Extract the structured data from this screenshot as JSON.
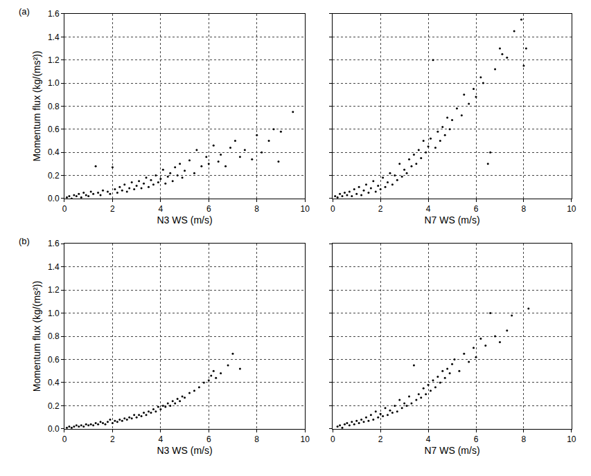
{
  "chart_data": [
    {
      "type": "scatter",
      "annotations": [
        "(a)"
      ],
      "x_label": "N3 WS (m/s)",
      "y_label": "Momentum flux (kg/(ms²))",
      "color": "#000000",
      "marker": "circle",
      "grid": true,
      "xlim": [
        0,
        10
      ],
      "xticks": [
        0,
        2,
        4,
        6,
        8,
        10
      ],
      "ylim": [
        0,
        1.6
      ],
      "yticks": [
        {
          "value": 0,
          "label": "0.0"
        },
        {
          "value": 0.2,
          "label": "0.2"
        },
        {
          "value": 0.4,
          "label": "0.4"
        },
        {
          "value": 0.6,
          "label": "0.6"
        },
        {
          "value": 0.8,
          "label": "0.8"
        },
        {
          "value": 1.0,
          "label": "1.0"
        },
        {
          "value": 1.2,
          "label": "1.2"
        },
        {
          "value": 1.4,
          "label": "1.4"
        },
        {
          "value": 1.6,
          "label": "1.6"
        }
      ],
      "x": [
        0.1,
        0.2,
        0.3,
        0.4,
        0.5,
        0.6,
        0.7,
        0.8,
        0.9,
        1.0,
        1.1,
        1.2,
        1.3,
        1.4,
        1.5,
        1.6,
        1.8,
        1.9,
        2.0,
        2.1,
        2.2,
        2.3,
        2.4,
        2.5,
        2.6,
        2.7,
        2.8,
        2.9,
        3.0,
        3.1,
        3.2,
        3.3,
        3.4,
        3.5,
        3.6,
        3.7,
        3.8,
        3.9,
        4.0,
        4.1,
        4.2,
        4.3,
        4.4,
        4.5,
        4.6,
        4.7,
        4.8,
        4.9,
        5.0,
        5.2,
        5.4,
        5.5,
        5.7,
        5.9,
        6.0,
        6.2,
        6.4,
        6.5,
        6.7,
        6.9,
        7.1,
        7.3,
        7.5,
        7.8,
        8.0,
        8.2,
        8.5,
        8.7,
        8.9,
        9.0,
        9.5
      ],
      "values": [
        0.01,
        0.02,
        0.0,
        0.03,
        0.02,
        0.04,
        0.01,
        0.05,
        0.03,
        0.02,
        0.06,
        0.04,
        0.28,
        0.05,
        0.03,
        0.07,
        0.06,
        0.04,
        0.27,
        0.08,
        0.05,
        0.1,
        0.07,
        0.12,
        0.06,
        0.09,
        0.14,
        0.08,
        0.11,
        0.15,
        0.09,
        0.13,
        0.18,
        0.1,
        0.16,
        0.12,
        0.2,
        0.14,
        0.17,
        0.25,
        0.13,
        0.19,
        0.22,
        0.15,
        0.27,
        0.2,
        0.3,
        0.18,
        0.24,
        0.33,
        0.22,
        0.42,
        0.28,
        0.36,
        0.3,
        0.46,
        0.32,
        0.38,
        0.28,
        0.44,
        0.5,
        0.36,
        0.42,
        0.34,
        0.55,
        0.4,
        0.5,
        0.6,
        0.32,
        0.58,
        0.75
      ]
    },
    {
      "type": "scatter",
      "x_label": "N7 WS (m/s)",
      "tick_labels": "x",
      "color": "#000000",
      "marker": "circle",
      "grid": true,
      "xlim": [
        0,
        10
      ],
      "xticks": [
        0,
        2,
        4,
        6,
        8,
        10
      ],
      "ylim": [
        0,
        1.6
      ],
      "yticks": [
        {
          "value": 0,
          "label": "0.0"
        },
        {
          "value": 0.2,
          "label": "0.2"
        },
        {
          "value": 0.4,
          "label": "0.4"
        },
        {
          "value": 0.6,
          "label": "0.6"
        },
        {
          "value": 0.8,
          "label": "0.8"
        },
        {
          "value": 1.0,
          "label": "1.0"
        },
        {
          "value": 1.2,
          "label": "1.2"
        },
        {
          "value": 1.4,
          "label": "1.4"
        },
        {
          "value": 1.6,
          "label": "1.6"
        }
      ],
      "x": [
        0.1,
        0.2,
        0.3,
        0.4,
        0.5,
        0.6,
        0.7,
        0.8,
        0.9,
        1.0,
        1.1,
        1.2,
        1.3,
        1.4,
        1.5,
        1.6,
        1.7,
        1.8,
        1.9,
        2.0,
        2.1,
        2.2,
        2.3,
        2.4,
        2.5,
        2.6,
        2.7,
        2.8,
        2.9,
        3.0,
        3.1,
        3.2,
        3.3,
        3.4,
        3.5,
        3.6,
        3.7,
        3.8,
        3.9,
        4.0,
        4.1,
        4.2,
        4.3,
        4.4,
        4.5,
        4.6,
        4.7,
        4.8,
        4.9,
        5.0,
        5.2,
        5.4,
        5.5,
        5.7,
        5.9,
        6.0,
        6.2,
        6.3,
        6.5,
        6.6,
        6.8,
        7.0,
        7.1,
        7.3,
        7.6,
        7.9,
        8.0,
        8.1
      ],
      "values": [
        0.02,
        0.01,
        0.04,
        0.02,
        0.05,
        0.03,
        0.06,
        0.02,
        0.08,
        0.04,
        0.1,
        0.03,
        0.07,
        0.12,
        0.05,
        0.09,
        0.15,
        0.06,
        0.11,
        0.08,
        0.18,
        0.1,
        0.14,
        0.22,
        0.12,
        0.2,
        0.16,
        0.3,
        0.19,
        0.25,
        0.22,
        0.34,
        0.28,
        0.38,
        0.3,
        0.42,
        0.35,
        0.5,
        0.4,
        0.45,
        0.52,
        1.2,
        0.44,
        0.58,
        0.5,
        0.62,
        0.55,
        0.7,
        0.6,
        0.68,
        0.78,
        0.72,
        0.9,
        0.82,
        0.95,
        0.88,
        1.05,
        1.0,
        0.3,
        0.4,
        1.12,
        1.3,
        1.25,
        1.22,
        1.45,
        1.55,
        1.15,
        1.3
      ]
    },
    {
      "type": "scatter",
      "annotations": [
        "(b)"
      ],
      "x_label": "N3 WS (m/s)",
      "y_label": "Momentum flux (kg/(ms²))",
      "color": "#000000",
      "marker": "circle",
      "grid": true,
      "xlim": [
        0,
        10
      ],
      "xticks": [
        0,
        2,
        4,
        6,
        8,
        10
      ],
      "ylim": [
        0,
        1.6
      ],
      "yticks": [
        {
          "value": 0,
          "label": "0.0"
        },
        {
          "value": 0.2,
          "label": "0.2"
        },
        {
          "value": 0.4,
          "label": "0.4"
        },
        {
          "value": 0.6,
          "label": "0.6"
        },
        {
          "value": 0.8,
          "label": "0.8"
        },
        {
          "value": 1.0,
          "label": "1.0"
        },
        {
          "value": 1.2,
          "label": "1.2"
        },
        {
          "value": 1.4,
          "label": "1.4"
        },
        {
          "value": 1.6,
          "label": "1.6"
        }
      ],
      "x": [
        0.1,
        0.2,
        0.3,
        0.4,
        0.5,
        0.6,
        0.7,
        0.8,
        0.9,
        1.0,
        1.1,
        1.2,
        1.3,
        1.4,
        1.5,
        1.6,
        1.7,
        1.8,
        1.9,
        2.0,
        2.1,
        2.2,
        2.3,
        2.4,
        2.5,
        2.6,
        2.7,
        2.8,
        2.9,
        3.0,
        3.1,
        3.2,
        3.3,
        3.4,
        3.5,
        3.6,
        3.7,
        3.8,
        3.9,
        4.0,
        4.1,
        4.2,
        4.3,
        4.4,
        4.5,
        4.6,
        4.7,
        4.8,
        4.9,
        5.0,
        5.2,
        5.4,
        5.6,
        5.8,
        6.0,
        6.1,
        6.2,
        6.3,
        6.5,
        6.8,
        7.0,
        7.3
      ],
      "values": [
        0.01,
        0.02,
        0.01,
        0.02,
        0.03,
        0.02,
        0.03,
        0.02,
        0.04,
        0.03,
        0.04,
        0.03,
        0.05,
        0.04,
        0.06,
        0.05,
        0.04,
        0.06,
        0.08,
        0.05,
        0.07,
        0.06,
        0.08,
        0.07,
        0.09,
        0.08,
        0.1,
        0.09,
        0.12,
        0.1,
        0.12,
        0.11,
        0.14,
        0.12,
        0.15,
        0.14,
        0.17,
        0.15,
        0.19,
        0.17,
        0.2,
        0.19,
        0.22,
        0.2,
        0.24,
        0.22,
        0.26,
        0.24,
        0.28,
        0.27,
        0.31,
        0.33,
        0.36,
        0.4,
        0.42,
        0.46,
        0.5,
        0.44,
        0.48,
        0.55,
        0.65,
        0.52
      ]
    },
    {
      "type": "scatter",
      "x_label": "N7 WS (m/s)",
      "tick_labels": "x",
      "color": "#000000",
      "marker": "circle",
      "grid": true,
      "xlim": [
        0,
        10
      ],
      "xticks": [
        0,
        2,
        4,
        6,
        8,
        10
      ],
      "ylim": [
        0,
        1.6
      ],
      "yticks": [
        {
          "value": 0,
          "label": "0.0"
        },
        {
          "value": 0.2,
          "label": "0.2"
        },
        {
          "value": 0.4,
          "label": "0.4"
        },
        {
          "value": 0.6,
          "label": "0.6"
        },
        {
          "value": 0.8,
          "label": "0.8"
        },
        {
          "value": 1.0,
          "label": "1.0"
        },
        {
          "value": 1.2,
          "label": "1.2"
        },
        {
          "value": 1.4,
          "label": "1.4"
        },
        {
          "value": 1.6,
          "label": "1.6"
        }
      ],
      "x": [
        0.2,
        0.3,
        0.4,
        0.5,
        0.6,
        0.7,
        0.8,
        0.9,
        1.0,
        1.1,
        1.2,
        1.3,
        1.4,
        1.5,
        1.6,
        1.7,
        1.8,
        1.9,
        2.0,
        2.1,
        2.2,
        2.3,
        2.4,
        2.5,
        2.6,
        2.7,
        2.8,
        2.9,
        3.0,
        3.1,
        3.2,
        3.3,
        3.4,
        3.5,
        3.6,
        3.7,
        3.8,
        3.9,
        4.0,
        4.1,
        4.2,
        4.3,
        4.4,
        4.5,
        4.6,
        4.7,
        4.8,
        4.9,
        5.0,
        5.1,
        5.3,
        5.5,
        5.7,
        5.9,
        6.0,
        6.2,
        6.4,
        6.6,
        6.8,
        7.0,
        7.3,
        7.5,
        8.2
      ],
      "values": [
        0.02,
        0.03,
        0.01,
        0.04,
        0.05,
        0.03,
        0.06,
        0.04,
        0.07,
        0.05,
        0.08,
        0.06,
        0.1,
        0.07,
        0.12,
        0.08,
        0.15,
        0.1,
        0.13,
        0.11,
        0.18,
        0.12,
        0.16,
        0.14,
        0.2,
        0.15,
        0.25,
        0.18,
        0.22,
        0.2,
        0.28,
        0.22,
        0.55,
        0.25,
        0.3,
        0.27,
        0.35,
        0.3,
        0.38,
        0.33,
        0.42,
        0.36,
        0.45,
        0.4,
        0.5,
        0.44,
        0.52,
        0.48,
        0.56,
        0.6,
        0.5,
        0.65,
        0.58,
        0.7,
        0.62,
        0.78,
        0.72,
        1.0,
        0.8,
        0.75,
        0.85,
        0.98,
        1.04
      ]
    }
  ]
}
